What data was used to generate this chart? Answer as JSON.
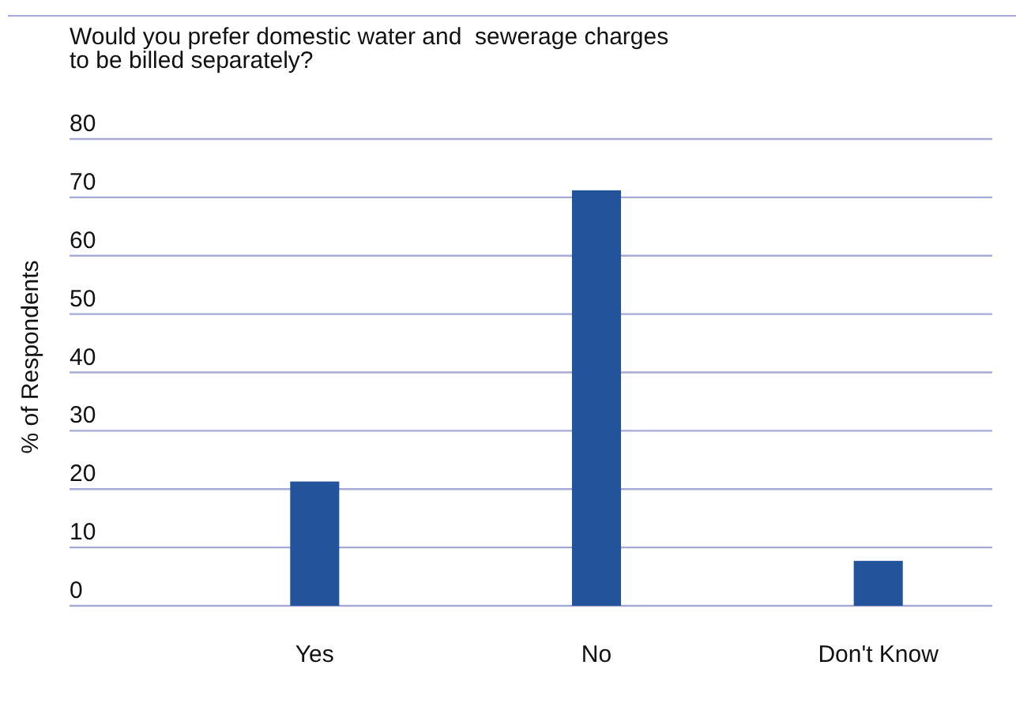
{
  "chart_data": {
    "type": "bar",
    "title": "Would you prefer domestic water and  sewerage charges\nto be billed separately?",
    "ylabel": "% of Respondents",
    "categories": [
      "Yes",
      "No",
      "Don't Know"
    ],
    "values": [
      21.3,
      71.2,
      7.7
    ],
    "color": "#22539b",
    "ylim": [
      0,
      80
    ],
    "yticks": [
      0,
      10,
      20,
      30,
      40,
      50,
      60,
      70,
      80
    ],
    "grid": "y"
  }
}
